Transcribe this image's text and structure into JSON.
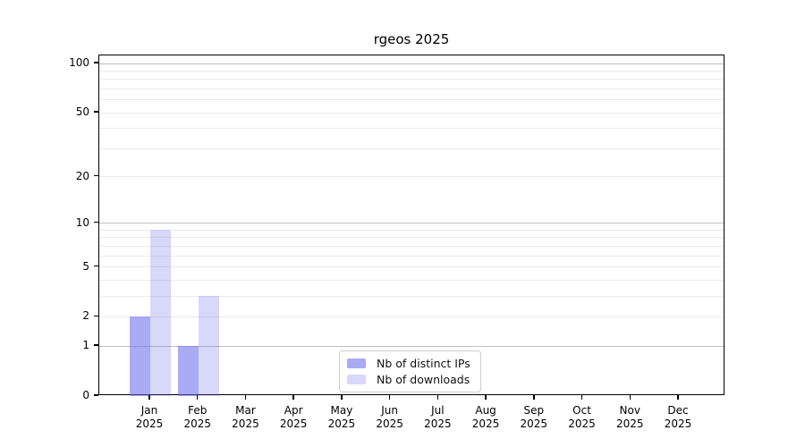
{
  "chart_data": {
    "type": "bar",
    "title": "rgeos 2025",
    "categories": [
      "Jan",
      "Feb",
      "Mar",
      "Apr",
      "May",
      "Jun",
      "Jul",
      "Aug",
      "Sep",
      "Oct",
      "Nov",
      "Dec"
    ],
    "category_year": "2025",
    "series": [
      {
        "key": "distinct-ips",
        "name": "Nb of distinct IPs",
        "color": "#aaaaf5",
        "fill": "rgba(100,100,237,0.55)",
        "values": [
          2,
          1,
          0,
          0,
          0,
          0,
          0,
          0,
          0,
          0,
          0,
          0
        ]
      },
      {
        "key": "downloads",
        "name": "Nb of downloads",
        "color": "#d9d9f8",
        "fill": "rgba(100,100,237,0.25)",
        "values": [
          9,
          3,
          0,
          0,
          0,
          0,
          0,
          0,
          0,
          0,
          0,
          0
        ]
      }
    ],
    "yscale": "log1p",
    "ylim": [
      0,
      112
    ],
    "yticks": [
      0,
      1,
      2,
      5,
      10,
      20,
      50,
      100
    ],
    "major_gridlines": [
      1,
      10,
      100
    ],
    "minor_gridlines": [
      2,
      3,
      4,
      5,
      6,
      7,
      8,
      9,
      20,
      30,
      40,
      50,
      60,
      70,
      80,
      90
    ],
    "grid": true,
    "legend_position": "lower-center",
    "colors": {
      "major_grid": "#c0c0c0",
      "minor_grid": "#ebebeb",
      "axis": "#000000",
      "background": "#ffffff"
    }
  }
}
